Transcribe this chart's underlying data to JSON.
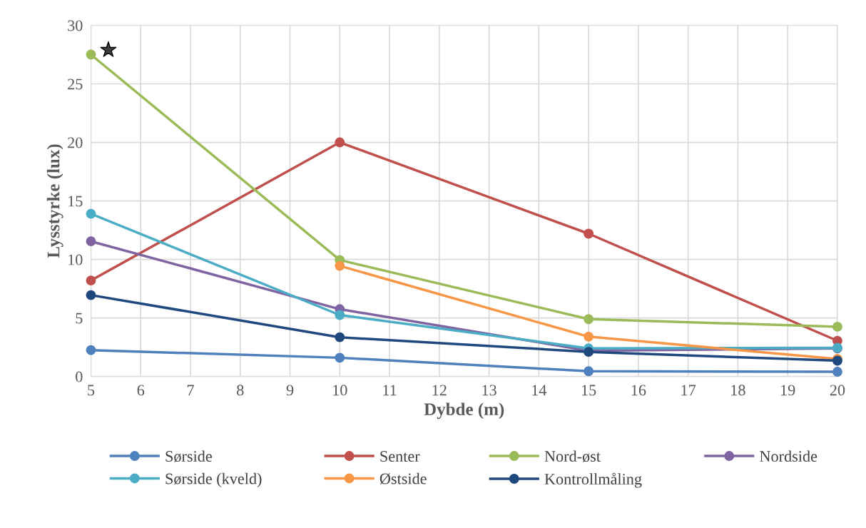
{
  "chart_data": {
    "type": "line",
    "xlabel": "Dybde (m)",
    "ylabel": "Lysstyrke (lux)",
    "x": [
      5,
      10,
      15,
      20
    ],
    "series": [
      {
        "name": "Sørside",
        "color": "#4f81bd",
        "values": [
          2.25,
          1.6,
          0.45,
          0.4
        ]
      },
      {
        "name": "Senter",
        "color": "#c0504d",
        "values": [
          8.2,
          20,
          12.2,
          3.05
        ]
      },
      {
        "name": "Nord-øst",
        "color": "#9bbb59",
        "values": [
          27.5,
          9.95,
          4.9,
          4.25
        ]
      },
      {
        "name": "Nordside",
        "color": "#8064a2",
        "values": [
          11.55,
          5.75,
          2.2,
          2.4
        ]
      },
      {
        "name": "Sørside (kveld)",
        "color": "#4bacc6",
        "values": [
          13.9,
          5.25,
          2.4,
          2.45
        ]
      },
      {
        "name": "Østside",
        "color": "#f79646",
        "values": [
          null,
          9.45,
          3.4,
          1.5
        ]
      },
      {
        "name": "Kontrollmåling",
        "color": "#1f497d",
        "values": [
          6.95,
          3.35,
          2.1,
          1.35
        ]
      }
    ],
    "xlim": [
      5,
      20
    ],
    "xticks": [
      5,
      6,
      7,
      8,
      9,
      10,
      11,
      12,
      13,
      14,
      15,
      16,
      17,
      18,
      19,
      20
    ],
    "ylim": [
      0,
      30
    ],
    "yticks": [
      0,
      5,
      10,
      15,
      20,
      25,
      30
    ],
    "grid": true,
    "legend": "bottom",
    "marker": "circle",
    "line_style": "solid"
  }
}
